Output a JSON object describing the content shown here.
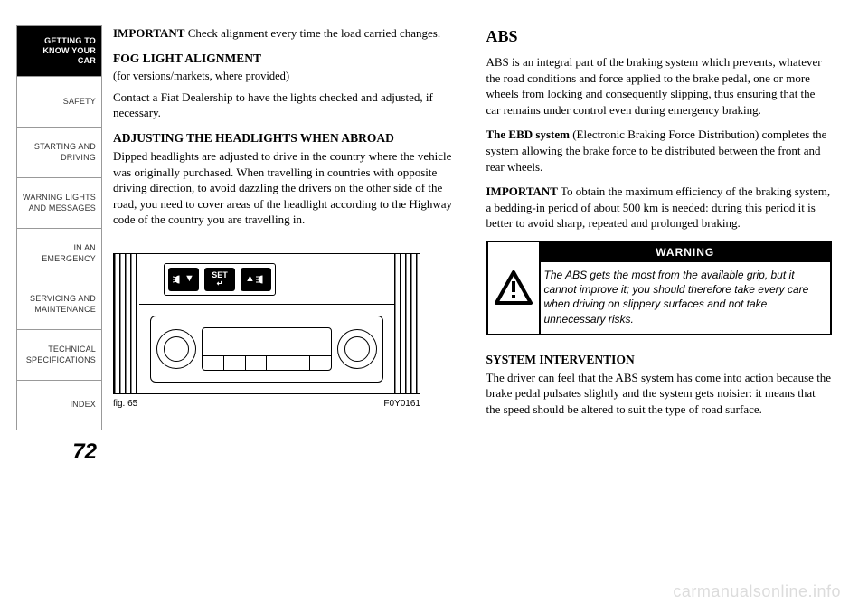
{
  "sidebar": {
    "items": [
      {
        "label": "GETTING TO\nKNOW YOUR CAR",
        "active": true
      },
      {
        "label": "SAFETY",
        "active": false
      },
      {
        "label": "STARTING AND\nDRIVING",
        "active": false
      },
      {
        "label": "WARNING LIGHTS\nAND MESSAGES",
        "active": false
      },
      {
        "label": "IN AN EMERGENCY",
        "active": false
      },
      {
        "label": "SERVICING AND\nMAINTENANCE",
        "active": false
      },
      {
        "label": "TECHNICAL\nSPECIFICATIONS",
        "active": false
      },
      {
        "label": "INDEX",
        "active": false
      }
    ]
  },
  "page_number": "72",
  "left_col": {
    "p1_lead": "IMPORTANT",
    "p1_rest": " Check alignment every time the load carried changes.",
    "h1": "FOG LIGHT ALIGNMENT",
    "h1_sub": "(for versions/markets, where provided)",
    "p2": "Contact a Fiat Dealership to have the lights checked and adjusted, if necessary.",
    "h2": "ADJUSTING THE HEADLIGHTS WHEN ABROAD",
    "p3": "Dipped headlights are adjusted to drive in the country where the vehicle was originally purchased. When travelling in countries with opposite driving direction, to avoid dazzling the drivers on the other side of the road, you need to cover areas of the headlight according to the Highway code of the country you are travelling in.",
    "figure": {
      "btn_set": "SET",
      "caption_left": "fig. 65",
      "caption_right": "F0Y0161"
    }
  },
  "right_col": {
    "h1": "ABS",
    "p1": "ABS is an integral part of the braking system which prevents, whatever the road conditions and force applied to the brake pedal, one or more wheels from locking and consequently slipping, thus ensuring that the car remains under control even during emergency braking.",
    "p2_lead": "The EBD system",
    "p2_rest": " (Electronic Braking Force Distribution) completes the system allowing the brake force to be distributed between the front and rear wheels.",
    "p3_lead": "IMPORTANT",
    "p3_rest": " To obtain the maximum efficiency of the braking system, a bedding-in period of about 500 km is needed: during this period it is better to avoid sharp, repeated and prolonged braking.",
    "warning": {
      "header": "WARNING",
      "text": "The ABS gets the most from the available grip, but it cannot improve it; you should therefore take every care when driving on slippery surfaces and not take unnecessary risks."
    },
    "h2": "SYSTEM INTERVENTION",
    "p4": "The driver can feel that the ABS system has come into action because the brake pedal pulsates slightly and the system gets noisier: it means that the speed should be altered to suit the type of road surface."
  },
  "watermark": "carmanualsonline.info",
  "colors": {
    "text": "#000000",
    "background": "#ffffff",
    "border": "#999999",
    "watermark": "#dcdcdc"
  }
}
